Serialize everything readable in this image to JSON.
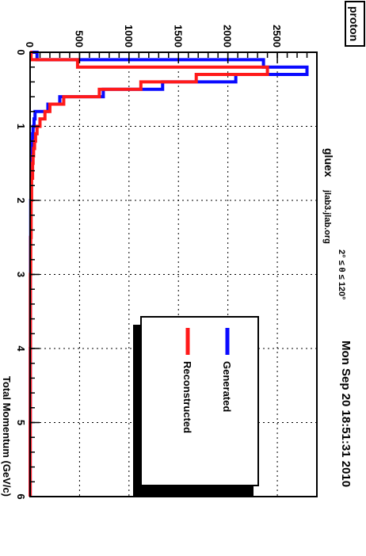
{
  "chart_data": {
    "type": "histogram",
    "orientation": "rotated 90 degrees clockwise",
    "title": "proton",
    "xlabel": "Total Momentum (GeV/c)",
    "ylabel": "",
    "xlim": [
      0,
      6
    ],
    "ylim": [
      0,
      2900
    ],
    "xticks": [
      "0",
      "1",
      "2",
      "3",
      "4",
      "5",
      "6"
    ],
    "yticks": [
      "0",
      "500",
      "1000",
      "1500",
      "2000",
      "2500"
    ],
    "grid": true,
    "legend_position": "top-right",
    "bin_edges": [
      0,
      0.1,
      0.2,
      0.3,
      0.4,
      0.5,
      0.6,
      0.7,
      0.8,
      0.9,
      1.0,
      1.1,
      1.2,
      1.3,
      1.4,
      1.5,
      1.7,
      2.0,
      2.5,
      3.0,
      4.0,
      5.0,
      6.0
    ],
    "series": [
      {
        "name": "Generated",
        "color": "#0a0aff",
        "values": [
          70,
          2360,
          2800,
          2080,
          1340,
          740,
          300,
          180,
          50,
          40,
          30,
          25,
          20,
          15,
          12,
          10,
          8,
          6,
          4,
          3,
          2,
          1
        ]
      },
      {
        "name": "Reconstructed",
        "color": "#ff1a1a",
        "values": [
          10,
          480,
          2400,
          1680,
          1120,
          700,
          340,
          200,
          150,
          100,
          70,
          55,
          45,
          35,
          30,
          25,
          15,
          10,
          6,
          3,
          2,
          1
        ]
      }
    ]
  },
  "labels": {
    "title": "proton",
    "stamp": "Mon Sep 20 18:51:31 2010",
    "site_name": "gluex",
    "site_host": "jlab3.jlab.org",
    "theta_range": "2° ≤ θ ≤ 120°",
    "xlabel": "Total Momentum (GeV/c)",
    "legend_generated": "Generated",
    "legend_reconstructed": "Reconstructed"
  },
  "colors": {
    "generated": "#0a0aff",
    "reconstructed": "#ff1a1a"
  }
}
